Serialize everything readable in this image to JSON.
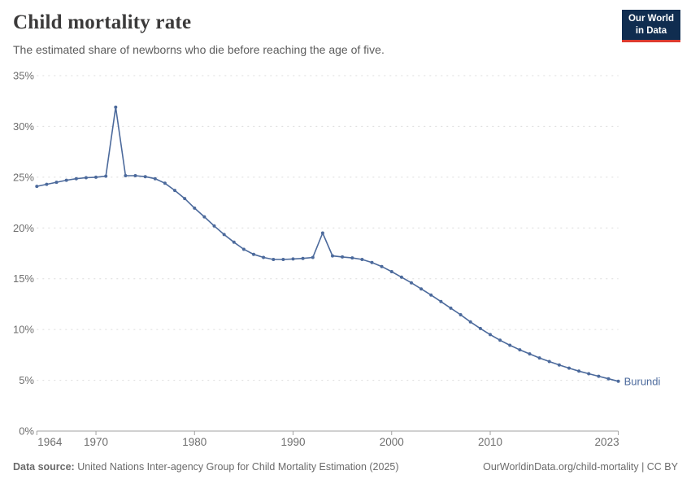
{
  "header": {
    "title": "Child mortality rate",
    "subtitle": "The estimated share of newborns who die before reaching the age of five.",
    "logo": {
      "line1": "Our World",
      "line2": "in Data"
    }
  },
  "chart_data": {
    "type": "line",
    "title": "Child mortality rate",
    "unit": "%",
    "grid": "horizontal-dashed",
    "legend_position": "end-of-line-label",
    "xlim": [
      1964,
      2023
    ],
    "ylim": [
      0,
      35
    ],
    "xticks": [
      1964,
      1970,
      1980,
      1990,
      2000,
      2010,
      2023
    ],
    "ytick_labels": [
      "0%",
      "5%",
      "10%",
      "15%",
      "20%",
      "25%",
      "30%",
      "35%"
    ],
    "x": [
      1964,
      1965,
      1966,
      1967,
      1968,
      1969,
      1970,
      1971,
      1972,
      1973,
      1974,
      1975,
      1976,
      1977,
      1978,
      1979,
      1980,
      1981,
      1982,
      1983,
      1984,
      1985,
      1986,
      1987,
      1988,
      1989,
      1990,
      1991,
      1992,
      1993,
      1994,
      1995,
      1996,
      1997,
      1998,
      1999,
      2000,
      2001,
      2002,
      2003,
      2004,
      2005,
      2006,
      2007,
      2008,
      2009,
      2010,
      2011,
      2012,
      2013,
      2014,
      2015,
      2016,
      2017,
      2018,
      2019,
      2020,
      2021,
      2022,
      2023
    ],
    "series": [
      {
        "name": "Burundi",
        "color": "#4c6a9c",
        "values": [
          24.1,
          24.3,
          24.5,
          24.7,
          24.85,
          24.95,
          25.0,
          25.1,
          31.9,
          25.15,
          25.15,
          25.05,
          24.85,
          24.4,
          23.7,
          22.9,
          21.95,
          21.1,
          20.2,
          19.35,
          18.6,
          17.9,
          17.4,
          17.1,
          16.9,
          16.9,
          16.95,
          17.0,
          17.1,
          19.5,
          17.25,
          17.15,
          17.05,
          16.9,
          16.6,
          16.2,
          15.7,
          15.15,
          14.6,
          14.0,
          13.4,
          12.75,
          12.1,
          11.45,
          10.75,
          10.1,
          9.5,
          8.95,
          8.45,
          8.0,
          7.6,
          7.2,
          6.85,
          6.5,
          6.2,
          5.9,
          5.65,
          5.4,
          5.15,
          4.9
        ]
      }
    ],
    "end_label": "Burundi"
  },
  "footer": {
    "source_label": "Data source:",
    "source_text": " United Nations Inter-agency Group for Child Mortality Estimation (2025)",
    "link_text": "OurWorldinData.org/child-mortality | CC BY"
  },
  "colors": {
    "line": "#4c6a9c",
    "gridline": "#dcdcdc",
    "axis": "#a1a1a1",
    "tick_label": "#6e6e6e",
    "title": "#3b3a3a",
    "subtitle": "#5c5c5c",
    "logo_bg": "#102d50",
    "logo_accent": "#dc3a2e"
  }
}
